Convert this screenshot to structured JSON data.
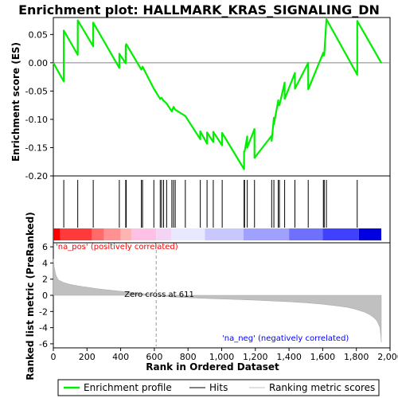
{
  "chart_data": {
    "type": "line",
    "title": "Enrichment plot: HALLMARK_KRAS_SIGNALING_DN",
    "colors": {
      "enrichment": "#00ee00",
      "hits": "#000000",
      "metric_fill": "#c0c0c0",
      "pos_label": "#ff0000",
      "neg_label": "#0000ff",
      "zero_line": "#808080"
    },
    "panels": [
      {
        "name": "enrichment-score",
        "ylabel": "Enrichment score (ES)",
        "ylim": [
          -0.2,
          0.08
        ],
        "yticks": [
          0.05,
          0.0,
          -0.05,
          -0.1,
          -0.15,
          -0.2
        ],
        "ytick_labels": [
          "0.05",
          "0.00",
          "-0.05",
          "-0.10",
          "-0.15",
          "-0.20"
        ],
        "zero_line": true
      },
      {
        "name": "ranked-list-metric",
        "ylabel": "Ranked list metric (PreRanked)",
        "ylim": [
          -6.5,
          6.5
        ],
        "yticks": [
          6,
          4,
          2,
          0,
          -2,
          -4,
          -6
        ],
        "ytick_labels": [
          "6",
          "4",
          "2",
          "0",
          "-2",
          "-4",
          "-6"
        ]
      }
    ],
    "xlabel": "Rank in Ordered Dataset",
    "xlim": [
      0,
      2000
    ],
    "xticks": [
      0,
      200,
      400,
      600,
      800,
      1000,
      1200,
      1400,
      1600,
      1800,
      2000
    ],
    "xtick_labels": [
      "0",
      "200",
      "400",
      "600",
      "800",
      "1,000",
      "1,200",
      "1,400",
      "1,600",
      "1,800",
      "2,000"
    ],
    "n_genes": 1948,
    "enrichment_profile": {
      "x": [
        0,
        62,
        62,
        145,
        145,
        237,
        237,
        392,
        392,
        430,
        430,
        433,
        433,
        523,
        523,
        530,
        530,
        597,
        597,
        635,
        635,
        643,
        643,
        655,
        655,
        673,
        673,
        704,
        704,
        714,
        714,
        724,
        724,
        784,
        784,
        873,
        873,
        913,
        913,
        950,
        950,
        1003,
        1003,
        1133,
        1133,
        1136,
        1136,
        1152,
        1152,
        1195,
        1195,
        1297,
        1297,
        1310,
        1310,
        1336,
        1336,
        1343,
        1343,
        1374,
        1374,
        1435,
        1435,
        1514,
        1514,
        1604,
        1604,
        1609,
        1609,
        1622,
        1622,
        1805,
        1805,
        1948
      ],
      "y": [
        0.0,
        -0.033,
        0.057,
        0.014,
        0.075,
        0.029,
        0.071,
        -0.009,
        0.016,
        -0.001,
        0.03,
        0.033,
        0.033,
        -0.012,
        -0.012,
        -0.007,
        -0.007,
        -0.046,
        -0.046,
        -0.064,
        -0.064,
        -0.062,
        -0.062,
        -0.067,
        -0.067,
        -0.072,
        -0.072,
        -0.086,
        -0.086,
        -0.078,
        -0.078,
        -0.083,
        -0.083,
        -0.094,
        -0.094,
        -0.135,
        -0.121,
        -0.143,
        -0.123,
        -0.14,
        -0.122,
        -0.146,
        -0.124,
        -0.188,
        -0.157,
        -0.157,
        -0.157,
        -0.13,
        -0.15,
        -0.117,
        -0.168,
        -0.129,
        -0.138,
        -0.097,
        -0.109,
        -0.066,
        -0.075,
        -0.075,
        -0.075,
        -0.035,
        -0.064,
        -0.018,
        -0.046,
        0.0,
        -0.047,
        0.018,
        0.013,
        0.013,
        0.013,
        0.077,
        0.077,
        -0.021,
        0.074,
        0.0
      ]
    },
    "hits": [
      62,
      145,
      237,
      392,
      430,
      433,
      523,
      530,
      597,
      635,
      643,
      655,
      673,
      704,
      714,
      724,
      784,
      873,
      913,
      950,
      1003,
      1133,
      1136,
      1152,
      1195,
      1297,
      1310,
      1336,
      1343,
      1374,
      1435,
      1514,
      1604,
      1609,
      1622,
      1805
    ],
    "ranked_metric": {
      "x": [
        0,
        5,
        15,
        30,
        60,
        100,
        150,
        200,
        250,
        300,
        400,
        500,
        611,
        700,
        800,
        900,
        1000,
        1100,
        1200,
        1300,
        1400,
        1500,
        1600,
        1700,
        1750,
        1800,
        1850,
        1880,
        1900,
        1920,
        1930,
        1940,
        1945,
        1948
      ],
      "values": [
        4.5,
        3.5,
        2.5,
        1.9,
        1.6,
        1.35,
        1.15,
        1.0,
        0.85,
        0.72,
        0.5,
        0.3,
        0.0,
        -0.2,
        -0.3,
        -0.38,
        -0.45,
        -0.52,
        -0.6,
        -0.7,
        -0.8,
        -0.93,
        -1.1,
        -1.35,
        -1.5,
        -1.75,
        -2.1,
        -2.4,
        -2.7,
        -3.1,
        -3.5,
        -4.0,
        -5.0,
        -5.8
      ]
    },
    "heatmap_bar": {
      "stops": [
        {
          "x": 0,
          "color": "#ff0000"
        },
        {
          "x": 40,
          "color": "#ff3a3a"
        },
        {
          "x": 230,
          "color": "#ff6a6a"
        },
        {
          "x": 300,
          "color": "#ff9191"
        },
        {
          "x": 400,
          "color": "#ffb4b4"
        },
        {
          "x": 465,
          "color": "#ffc0e6"
        },
        {
          "x": 611,
          "color": "#f4d4f4"
        },
        {
          "x": 700,
          "color": "#e8e8ff"
        },
        {
          "x": 900,
          "color": "#c8c8ff"
        },
        {
          "x": 1130,
          "color": "#a0a0ff"
        },
        {
          "x": 1400,
          "color": "#7070ff"
        },
        {
          "x": 1600,
          "color": "#4040ff"
        },
        {
          "x": 1815,
          "color": "#0000e0"
        },
        {
          "x": 1948,
          "color": "#0000cc"
        }
      ]
    },
    "annotations": {
      "pos_label": "'na_pos' (positively correlated)",
      "neg_label": "'na_neg' (negatively correlated)",
      "zero_cross": "Zero cross at 611",
      "zero_cross_x": 611
    },
    "legend": [
      {
        "label": "Enrichment profile",
        "color": "#00ee00",
        "style": "thick-line"
      },
      {
        "label": "Hits",
        "color": "#000000",
        "style": "line"
      },
      {
        "label": "Ranking metric scores",
        "color": "#c0c0c0",
        "style": "line"
      }
    ]
  }
}
